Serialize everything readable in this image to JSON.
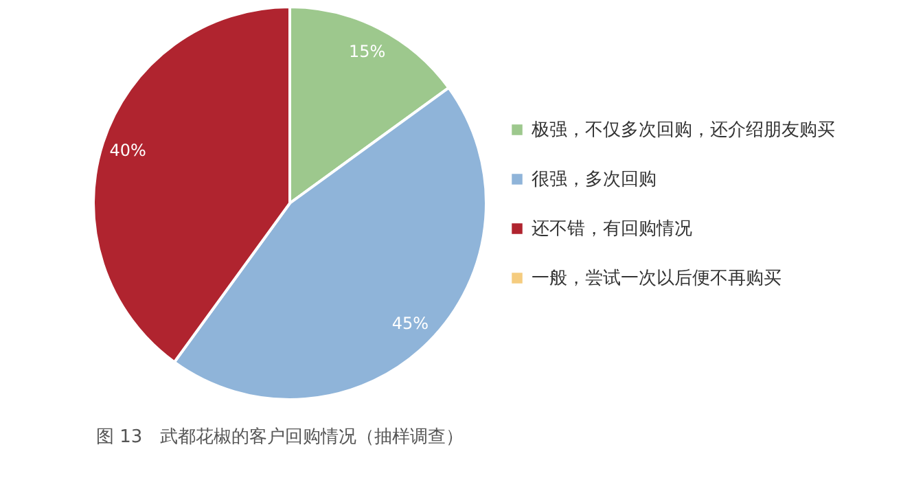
{
  "chart_data": {
    "type": "pie",
    "categories": [
      "极强，不仅多次回购，还介绍朋友购买",
      "很强，多次回购",
      "还不错，有回购情况",
      "一般，尝试一次以后便不再购买"
    ],
    "values": [
      15,
      45,
      40,
      0
    ],
    "colors": [
      "#9dc88d",
      "#8fb4d9",
      "#b0242f",
      "#f5cc7f"
    ],
    "value_labels": [
      "15%",
      "45%",
      "40%",
      null
    ],
    "legend": "right",
    "title": "图 13　武都花椒的客户回购情况（抽样调查）"
  }
}
